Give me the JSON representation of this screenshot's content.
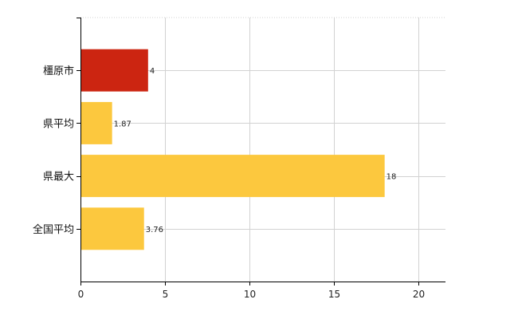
{
  "chart_data": {
    "type": "bar",
    "orientation": "horizontal",
    "categories": [
      "橿原市",
      "県平均",
      "県最大",
      "全国平均"
    ],
    "values": [
      4,
      1.87,
      18,
      3.76
    ],
    "data_labels": [
      "4",
      "1.87",
      "18",
      "3.76"
    ],
    "xlim": [
      0,
      21.6
    ],
    "xticks": [
      0,
      5,
      10,
      15,
      20
    ],
    "xtick_labels": [
      "0",
      "5",
      "10",
      "15",
      "20"
    ],
    "title": "",
    "xlabel": "",
    "ylabel": "",
    "grid": true,
    "legend": "none",
    "highlight_index": 0,
    "colors": {
      "highlight": "#cc2511",
      "default": "#fcc83e"
    }
  }
}
